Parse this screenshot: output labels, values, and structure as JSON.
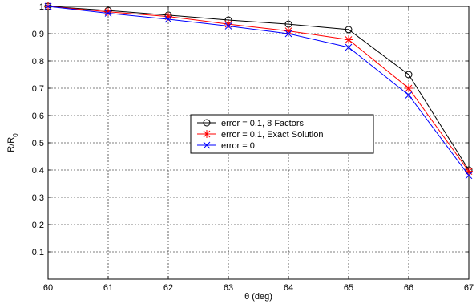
{
  "chart_data": {
    "type": "line",
    "title": "",
    "xlabel": "θ (deg)",
    "ylabel": "R/R",
    "ylabel_subscript": "0",
    "xlim": [
      60,
      67
    ],
    "ylim": [
      0,
      1
    ],
    "xticks": [
      "60",
      "61",
      "62",
      "63",
      "64",
      "65",
      "66",
      "67"
    ],
    "yticks": [
      "0.1",
      "0.2",
      "0.3",
      "0.4",
      "0.5",
      "0.6",
      "0.7",
      "0.8",
      "0.9",
      "1"
    ],
    "grid": true,
    "legend_position": "center",
    "x": [
      60,
      61,
      62,
      63,
      64,
      65,
      66,
      67
    ],
    "series": [
      {
        "name": "error = 0.1, 8 Factors",
        "color": "#000000",
        "marker": "circle",
        "values": [
          1.0,
          0.985,
          0.968,
          0.95,
          0.935,
          0.915,
          0.75,
          0.4
        ]
      },
      {
        "name": "error = 0.1, Exact Solution",
        "color": "#ff0000",
        "marker": "star",
        "values": [
          1.0,
          0.98,
          0.963,
          0.935,
          0.91,
          0.878,
          0.7,
          0.395
        ]
      },
      {
        "name": "error = 0",
        "color": "#0000ff",
        "marker": "x",
        "values": [
          1.0,
          0.975,
          0.953,
          0.928,
          0.9,
          0.85,
          0.675,
          0.38
        ]
      }
    ]
  }
}
